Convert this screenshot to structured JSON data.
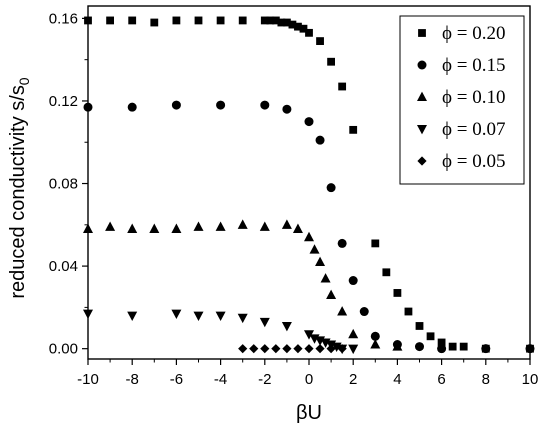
{
  "chart_data": {
    "type": "scatter",
    "xlabel": "βU",
    "ylabel": "reduced conductivity s/s",
    "ylabel_subscript": "0",
    "xlim": [
      -10,
      10
    ],
    "ylim": [
      -0.005,
      0.166
    ],
    "x_ticks": [
      -10,
      -8,
      -6,
      -4,
      -2,
      0,
      2,
      4,
      6,
      8,
      10
    ],
    "y_ticks": [
      0.0,
      0.04,
      0.08,
      0.12,
      0.16
    ],
    "y_tick_labels": [
      "0.00",
      "0.04",
      "0.08",
      "0.12",
      "0.16"
    ],
    "grid": false,
    "legend_position": "top-right",
    "series": [
      {
        "name": "ϕ = 0.20",
        "marker": "square",
        "x": [
          -10,
          -9,
          -8,
          -7,
          -6,
          -5,
          -4,
          -3,
          -2,
          -1.75,
          -1.5,
          -1.25,
          -1,
          -0.75,
          -0.5,
          -0.25,
          0,
          0.5,
          1,
          1.5,
          2,
          3,
          3.5,
          4,
          4.5,
          5,
          5.5,
          6,
          6.5,
          7,
          8,
          10
        ],
        "y": [
          0.159,
          0.159,
          0.159,
          0.158,
          0.159,
          0.159,
          0.159,
          0.159,
          0.159,
          0.159,
          0.159,
          0.158,
          0.158,
          0.157,
          0.156,
          0.155,
          0.153,
          0.149,
          0.139,
          0.127,
          0.106,
          0.051,
          0.037,
          0.027,
          0.018,
          0.011,
          0.006,
          0.003,
          0.001,
          0.001,
          0.0,
          0.0
        ]
      },
      {
        "name": "ϕ = 0.15",
        "marker": "circle",
        "x": [
          -10,
          -8,
          -6,
          -4,
          -2,
          -1,
          0,
          0.5,
          1,
          1.5,
          2,
          2.5,
          3,
          4,
          5,
          6,
          8,
          10
        ],
        "y": [
          0.117,
          0.117,
          0.118,
          0.118,
          0.118,
          0.116,
          0.11,
          0.101,
          0.078,
          0.051,
          0.033,
          0.018,
          0.006,
          0.002,
          0.001,
          0.0,
          0.0,
          0.0
        ]
      },
      {
        "name": "ϕ = 0.10",
        "marker": "triangle-up",
        "x": [
          -10,
          -9,
          -8,
          -7,
          -6,
          -5,
          -4,
          -3,
          -2,
          -1,
          -0.5,
          0,
          0.25,
          0.5,
          0.75,
          1,
          1.5,
          2,
          3,
          4
        ],
        "y": [
          0.058,
          0.059,
          0.058,
          0.058,
          0.058,
          0.059,
          0.059,
          0.06,
          0.059,
          0.06,
          0.058,
          0.054,
          0.048,
          0.042,
          0.034,
          0.026,
          0.018,
          0.007,
          0.002,
          0.001
        ]
      },
      {
        "name": "ϕ = 0.07",
        "marker": "triangle-down",
        "x": [
          -10,
          -8,
          -6,
          -5,
          -4,
          -3,
          -2,
          -1,
          0,
          0.25,
          0.5,
          0.75,
          1,
          1.25,
          1.5,
          2
        ],
        "y": [
          0.017,
          0.016,
          0.017,
          0.016,
          0.016,
          0.015,
          0.013,
          0.011,
          0.007,
          0.005,
          0.004,
          0.003,
          0.002,
          0.001,
          0.0,
          0.0
        ]
      },
      {
        "name": "ϕ = 0.05",
        "marker": "diamond",
        "x": [
          -3,
          -2.5,
          -2,
          -1.5,
          -1,
          -0.5,
          0,
          0.5,
          1,
          1.5
        ],
        "y": [
          0.0,
          0.0,
          0.0,
          0.0,
          0.0,
          0.0,
          0.0,
          0.0,
          0.0,
          0.0
        ]
      }
    ]
  }
}
